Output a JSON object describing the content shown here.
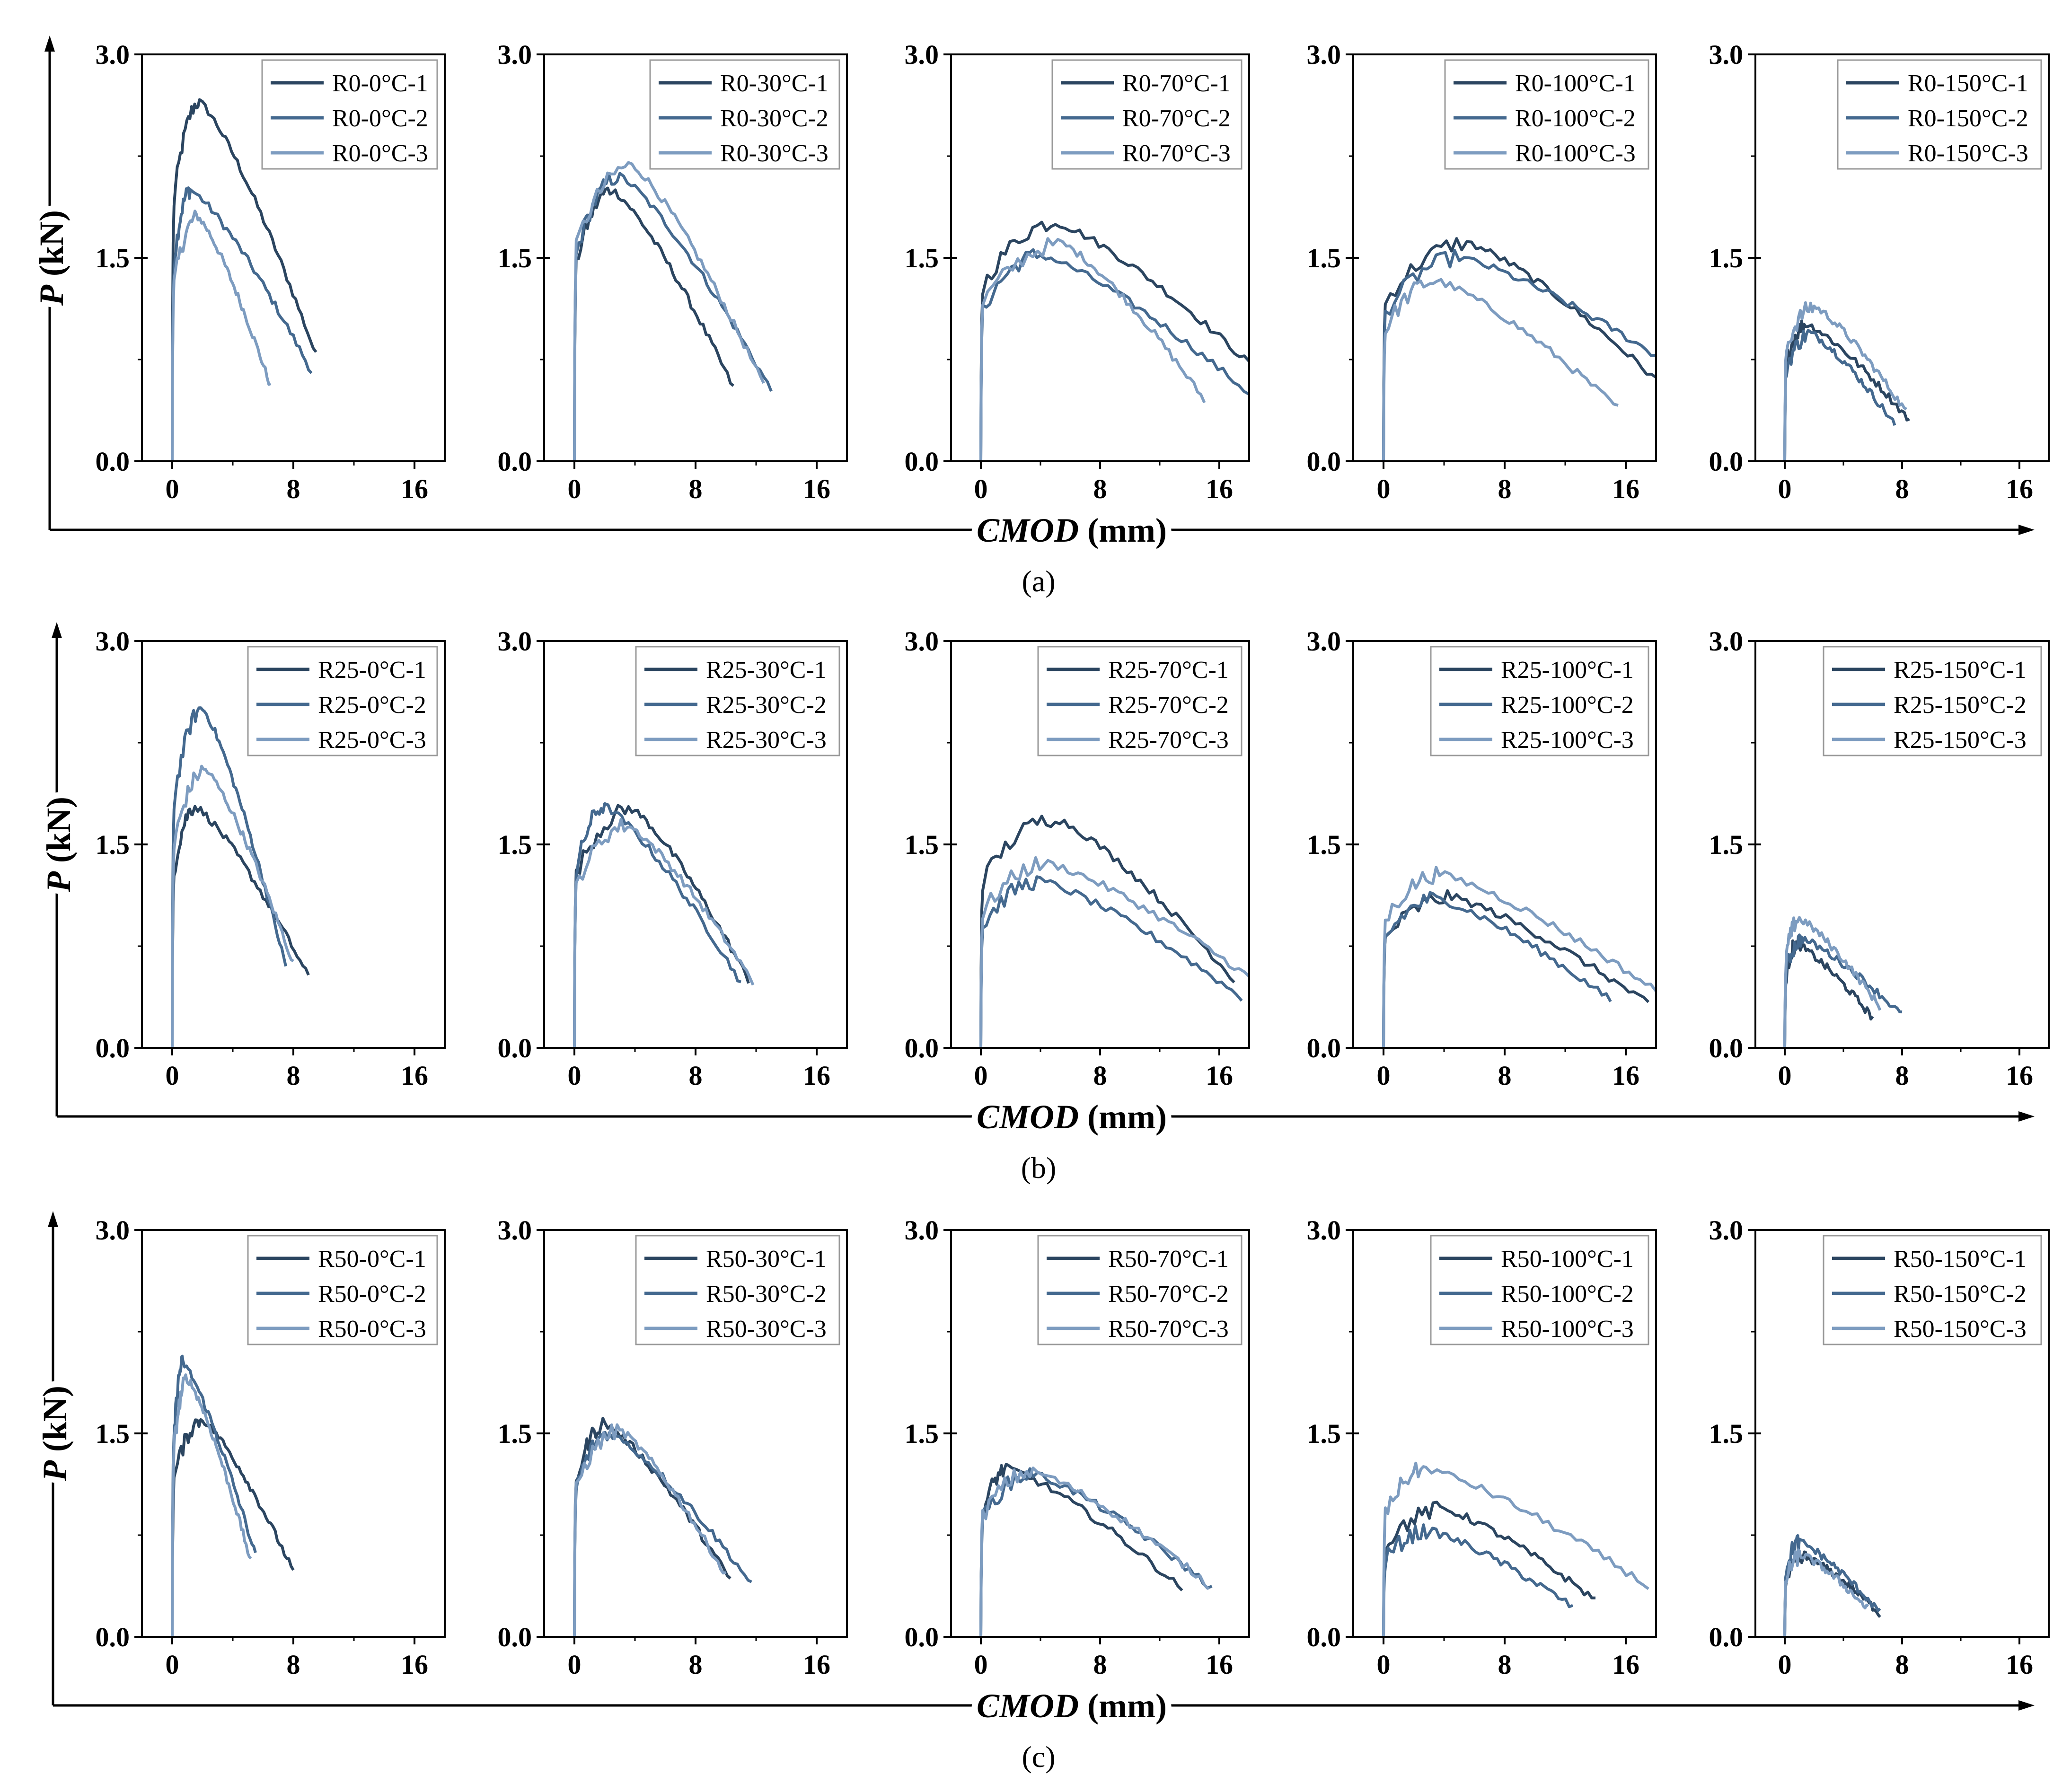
{
  "figure": {
    "y_axis_label": "P",
    "y_axis_unit": "(kN)",
    "x_axis_label": "CMOD",
    "x_axis_unit": "(mm)"
  },
  "colors": {
    "series1": "#2b4560",
    "series2": "#44698f",
    "series3": "#7d9cc0",
    "axis": "#000000"
  },
  "chart_data": [
    {
      "type": "line",
      "row_label": "(a)",
      "xlabel": "CMOD (mm)",
      "ylabel": "P (kN)",
      "x_ticks": [
        "0",
        "8",
        "16"
      ],
      "y_ticks": [
        "0.0",
        "1.5",
        "3.0"
      ],
      "xlim": [
        -2,
        18
      ],
      "ylim": [
        0,
        3
      ],
      "legend_position": "top-right",
      "panels": [
        {
          "title": "R0-0°C",
          "series": [
            {
              "name": "R0-0°C-1",
              "peak": [
                1.8,
                2.65
              ],
              "end": [
                9.5,
                0.78
              ]
            },
            {
              "name": "R0-0°C-2",
              "peak": [
                1.2,
                2.0
              ],
              "end": [
                9.2,
                0.66
              ]
            },
            {
              "name": "R0-0°C-3",
              "peak": [
                1.7,
                1.8
              ],
              "end": [
                6.5,
                0.55
              ]
            }
          ]
        },
        {
          "title": "R0-30°C",
          "series": [
            {
              "name": "R0-30°C-1",
              "peak": [
                2.5,
                2.0
              ],
              "end": [
                10.5,
                0.54
              ]
            },
            {
              "name": "R0-30°C-2",
              "peak": [
                3.0,
                2.1
              ],
              "end": [
                13.0,
                0.52
              ]
            },
            {
              "name": "R0-30°C-3",
              "peak": [
                3.8,
                2.18
              ],
              "end": [
                12.5,
                0.56
              ]
            }
          ]
        },
        {
          "title": "R0-70°C",
          "series": [
            {
              "name": "R0-70°C-1",
              "peak": [
                5.0,
                1.76
              ],
              "end": [
                18.0,
                0.72
              ]
            },
            {
              "name": "R0-70°C-2",
              "peak": [
                4.0,
                1.52
              ],
              "end": [
                18.0,
                0.5
              ]
            },
            {
              "name": "R0-70°C-3",
              "peak": [
                5.5,
                1.6
              ],
              "end": [
                15.0,
                0.45
              ]
            }
          ]
        },
        {
          "title": "R0-100°C",
          "series": [
            {
              "name": "R0-100°C-1",
              "peak": [
                5.5,
                1.61
              ],
              "end": [
                18.0,
                0.6
              ]
            },
            {
              "name": "R0-100°C-2",
              "peak": [
                5.0,
                1.5
              ],
              "end": [
                18.0,
                0.78
              ]
            },
            {
              "name": "R0-100°C-3",
              "peak": [
                3.5,
                1.33
              ],
              "end": [
                15.5,
                0.39
              ]
            }
          ]
        },
        {
          "title": "R0-150°C",
          "series": [
            {
              "name": "R0-150°C-1",
              "peak": [
                1.5,
                1.01
              ],
              "end": [
                8.5,
                0.3
              ]
            },
            {
              "name": "R0-150°C-2",
              "peak": [
                1.8,
                0.94
              ],
              "end": [
                7.5,
                0.27
              ]
            },
            {
              "name": "R0-150°C-3",
              "peak": [
                2.0,
                1.14
              ],
              "end": [
                8.3,
                0.36
              ]
            }
          ]
        }
      ]
    },
    {
      "type": "line",
      "row_label": "(b)",
      "xlabel": "CMOD (mm)",
      "ylabel": "P (kN)",
      "x_ticks": [
        "0",
        "8",
        "16"
      ],
      "y_ticks": [
        "0.0",
        "1.5",
        "3.0"
      ],
      "xlim": [
        -2,
        18
      ],
      "ylim": [
        0,
        3
      ],
      "legend_position": "top-right",
      "panels": [
        {
          "title": "R25-0°C",
          "series": [
            {
              "name": "R25-0°C-1",
              "peak": [
                1.5,
                1.78
              ],
              "end": [
                9.0,
                0.52
              ]
            },
            {
              "name": "R25-0°C-2",
              "peak": [
                2.0,
                2.5
              ],
              "end": [
                7.5,
                0.6
              ]
            },
            {
              "name": "R25-0°C-3",
              "peak": [
                2.2,
                2.05
              ],
              "end": [
                8.0,
                0.62
              ]
            }
          ]
        },
        {
          "title": "R25-30°C",
          "series": [
            {
              "name": "R25-30°C-1",
              "peak": [
                3.8,
                1.76
              ],
              "end": [
                11.5,
                0.5
              ]
            },
            {
              "name": "R25-30°C-2",
              "peak": [
                2.0,
                1.78
              ],
              "end": [
                11.0,
                0.48
              ]
            },
            {
              "name": "R25-30°C-3",
              "peak": [
                3.5,
                1.64
              ],
              "end": [
                11.8,
                0.48
              ]
            }
          ]
        },
        {
          "title": "R25-70°C",
          "series": [
            {
              "name": "R25-70°C-1",
              "peak": [
                5.0,
                1.69
              ],
              "end": [
                17.0,
                0.5
              ]
            },
            {
              "name": "R25-70°C-2",
              "peak": [
                4.0,
                1.23
              ],
              "end": [
                17.5,
                0.37
              ]
            },
            {
              "name": "R25-70°C-3",
              "peak": [
                4.5,
                1.36
              ],
              "end": [
                18.0,
                0.52
              ]
            }
          ]
        },
        {
          "title": "R25-100°C",
          "series": [
            {
              "name": "R25-100°C-1",
              "peak": [
                4.5,
                1.11
              ],
              "end": [
                17.5,
                0.32
              ]
            },
            {
              "name": "R25-100°C-2",
              "peak": [
                3.5,
                1.1
              ],
              "end": [
                15.0,
                0.35
              ]
            },
            {
              "name": "R25-100°C-3",
              "peak": [
                3.7,
                1.28
              ],
              "end": [
                18.0,
                0.42
              ]
            }
          ]
        },
        {
          "title": "R25-150°C",
          "series": [
            {
              "name": "R25-150°C-1",
              "peak": [
                0.8,
                0.76
              ],
              "end": [
                6.0,
                0.22
              ]
            },
            {
              "name": "R25-150°C-2",
              "peak": [
                1.2,
                0.8
              ],
              "end": [
                8.0,
                0.24
              ]
            },
            {
              "name": "R25-150°C-3",
              "peak": [
                1.0,
                0.95
              ],
              "end": [
                6.5,
                0.3
              ]
            }
          ]
        }
      ]
    },
    {
      "type": "line",
      "row_label": "(c)",
      "xlabel": "CMOD (mm)",
      "ylabel": "P (kN)",
      "x_ticks": [
        "0",
        "8",
        "16"
      ],
      "y_ticks": [
        "0.0",
        "1.5",
        "3.0"
      ],
      "xlim": [
        -2,
        18
      ],
      "ylim": [
        0,
        3
      ],
      "legend_position": "top-right",
      "panels": [
        {
          "title": "R50-0°C",
          "series": [
            {
              "name": "R50-0°C-1",
              "peak": [
                2.0,
                1.6
              ],
              "end": [
                8.0,
                0.48
              ]
            },
            {
              "name": "R50-0°C-2",
              "peak": [
                0.7,
                2.02
              ],
              "end": [
                5.5,
                0.6
              ]
            },
            {
              "name": "R50-0°C-3",
              "peak": [
                1.0,
                1.9
              ],
              "end": [
                5.2,
                0.55
              ]
            }
          ]
        },
        {
          "title": "R50-30°C",
          "series": [
            {
              "name": "R50-30°C-1",
              "peak": [
                2.0,
                1.57
              ],
              "end": [
                10.3,
                0.42
              ]
            },
            {
              "name": "R50-30°C-2",
              "peak": [
                2.3,
                1.5
              ],
              "end": [
                11.7,
                0.39
              ]
            },
            {
              "name": "R50-30°C-3",
              "peak": [
                3.0,
                1.52
              ],
              "end": [
                10.0,
                0.45
              ]
            }
          ]
        },
        {
          "title": "R50-70°C",
          "series": [
            {
              "name": "R50-70°C-1",
              "peak": [
                1.8,
                1.24
              ],
              "end": [
                13.5,
                0.35
              ]
            },
            {
              "name": "R50-70°C-2",
              "peak": [
                3.5,
                1.2
              ],
              "end": [
                15.5,
                0.36
              ]
            },
            {
              "name": "R50-70°C-3",
              "peak": [
                3.5,
                1.22
              ],
              "end": [
                15.3,
                0.38
              ]
            }
          ]
        },
        {
          "title": "R50-100°C",
          "series": [
            {
              "name": "R50-100°C-1",
              "peak": [
                4.0,
                0.94
              ],
              "end": [
                14.0,
                0.27
              ]
            },
            {
              "name": "R50-100°C-2",
              "peak": [
                3.0,
                0.78
              ],
              "end": [
                12.5,
                0.22
              ]
            },
            {
              "name": "R50-100°C-3",
              "peak": [
                2.8,
                1.24
              ],
              "end": [
                17.5,
                0.37
              ]
            }
          ]
        },
        {
          "title": "R50-150°C",
          "series": [
            {
              "name": "R50-150°C-1",
              "peak": [
                1.5,
                0.58
              ],
              "end": [
                6.5,
                0.17
              ]
            },
            {
              "name": "R50-150°C-2",
              "peak": [
                1.0,
                0.7
              ],
              "end": [
                6.5,
                0.18
              ]
            },
            {
              "name": "R50-150°C-3",
              "peak": [
                1.2,
                0.6
              ],
              "end": [
                5.7,
                0.2
              ]
            }
          ]
        }
      ]
    }
  ]
}
